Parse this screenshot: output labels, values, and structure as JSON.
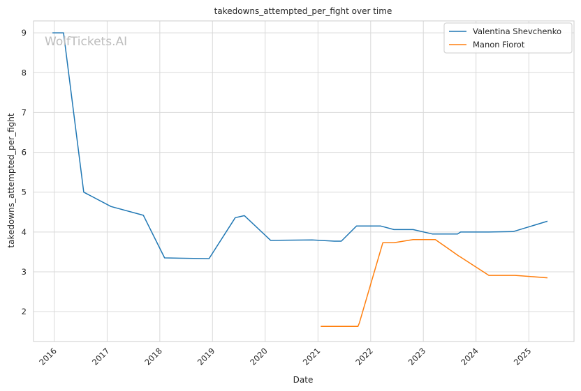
{
  "chart_data": {
    "type": "line",
    "title": "takedowns_attempted_per_fight over time",
    "xlabel": "Date",
    "ylabel": "takedowns_attempted_per_fight",
    "watermark": "WolfTickets.AI",
    "xlim": [
      "2015-08-10",
      "2025-11-10"
    ],
    "ylim": [
      1.25,
      9.3
    ],
    "x_ticks": [
      "2016",
      "2017",
      "2018",
      "2019",
      "2020",
      "2021",
      "2022",
      "2023",
      "2024",
      "2025"
    ],
    "y_ticks": [
      2,
      3,
      4,
      5,
      6,
      7,
      8,
      9
    ],
    "grid": true,
    "legend_position": "top-right",
    "series": [
      {
        "name": "Valentina Shevchenko",
        "color": "#1f77b4",
        "x": [
          "2015-12-19",
          "2016-03-05",
          "2016-07-23",
          "2017-01-28",
          "2017-09-09",
          "2018-02-03",
          "2018-12-08",
          "2019-06-08",
          "2019-08-10",
          "2020-02-08",
          "2020-11-21",
          "2021-04-24",
          "2021-06-12",
          "2021-09-25",
          "2022-03-12",
          "2022-06-11",
          "2022-10-22",
          "2023-03-04",
          "2023-08-26",
          "2023-09-16",
          "2024-03-30",
          "2024-09-14",
          "2025-05-10"
        ],
        "y": [
          9.0,
          9.0,
          5.0,
          4.64,
          4.42,
          3.35,
          3.33,
          4.36,
          4.41,
          3.79,
          3.8,
          3.77,
          3.77,
          4.15,
          4.15,
          4.06,
          4.06,
          3.95,
          3.95,
          4.0,
          4.0,
          4.01,
          4.27
        ]
      },
      {
        "name": "Manon Fiorot",
        "color": "#ff7f0e",
        "x": [
          "2021-01-20",
          "2021-10-05",
          "2021-10-15",
          "2022-03-26",
          "2022-06-11",
          "2022-10-22",
          "2023-03-25",
          "2023-09-02",
          "2023-09-16",
          "2024-03-30",
          "2024-09-28",
          "2025-05-10"
        ],
        "y": [
          1.63,
          1.63,
          1.72,
          3.73,
          3.73,
          3.81,
          3.81,
          3.4,
          3.37,
          2.91,
          2.91,
          2.85
        ]
      }
    ]
  }
}
